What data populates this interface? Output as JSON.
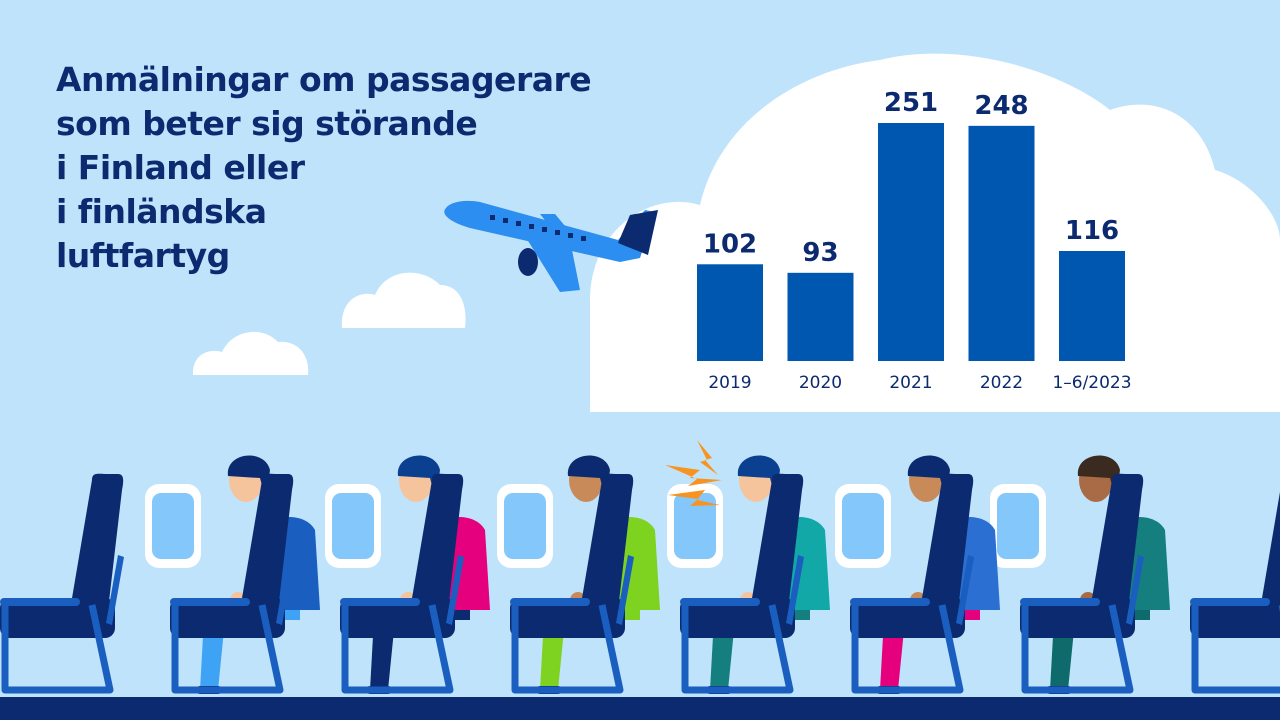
{
  "title_lines": [
    "Anmälningar om passagerare",
    "som beter sig störande",
    "i Finland eller",
    "i finländska",
    "luftfartyg"
  ],
  "colors": {
    "background": "#bfe3fb",
    "cloud": "#ffffff",
    "bar": "#0057b0",
    "text": "#0b2a6f",
    "seat": "#0b2a6f",
    "seat_frame": "#1a5fbf",
    "floor": "#0b2a6f"
  },
  "illustration": {
    "icons": [
      "airplane-icon",
      "cloud-icon",
      "seat-icon",
      "window-icon",
      "passenger-icon",
      "annoyance-lightning-icon"
    ]
  },
  "chart_data": {
    "type": "bar",
    "title": "",
    "xlabel": "",
    "ylabel": "",
    "categories": [
      "2019",
      "2020",
      "2021",
      "2022",
      "1–6/2023"
    ],
    "values": [
      102,
      93,
      251,
      248,
      116
    ],
    "data_labels": [
      "102",
      "93",
      "251",
      "248",
      "116"
    ],
    "ylim": [
      0,
      251
    ],
    "grid": false,
    "legend": "none"
  }
}
